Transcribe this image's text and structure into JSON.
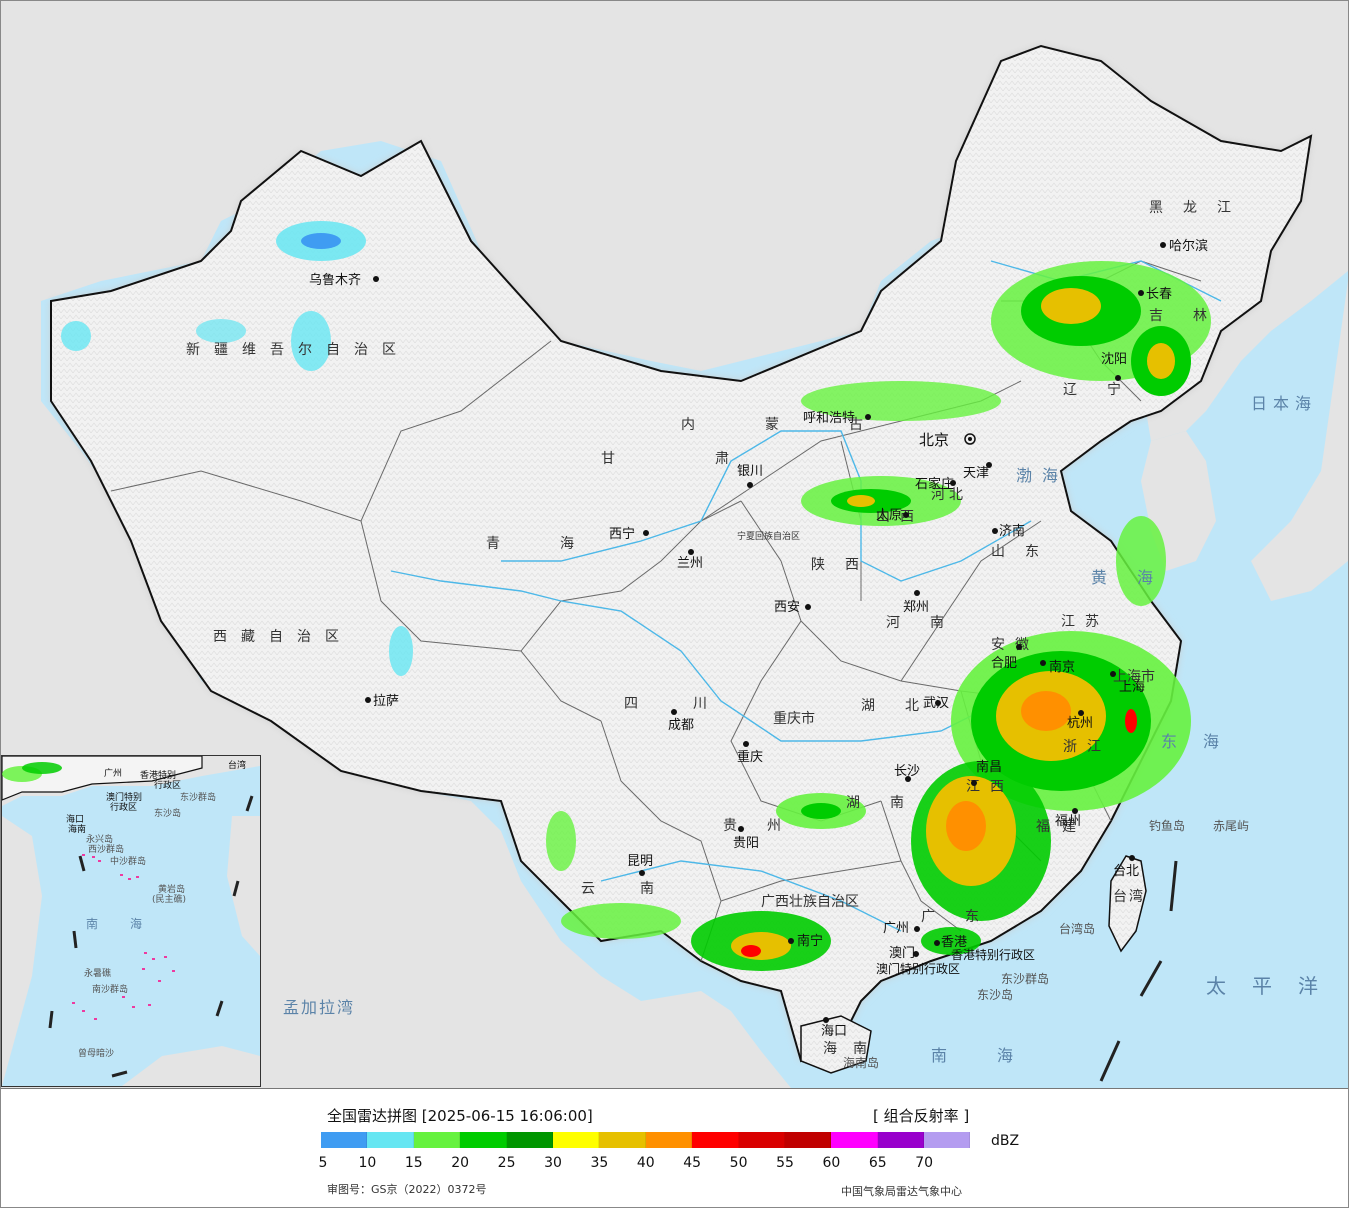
{
  "legend": {
    "title": "全国雷达拼图 [2025-06-15 16:06:00]",
    "product": "[ 组合反射率 ]",
    "unit": "dBZ",
    "review_number": "审图号：GS京（2022）0372号",
    "source": "中国气象局雷达气象中心",
    "ticks": [
      "5",
      "10",
      "15",
      "20",
      "25",
      "30",
      "35",
      "40",
      "45",
      "50",
      "55",
      "60",
      "65",
      "70"
    ],
    "colors": [
      "#3f9cf2",
      "#66e6f2",
      "#66f23f",
      "#00cc00",
      "#009600",
      "#ffff00",
      "#e6c000",
      "#ff9000",
      "#ff0000",
      "#d90000",
      "#c00000",
      "#ff00ff",
      "#9900cc",
      "#b49cf0"
    ]
  },
  "map": {
    "colors": {
      "sea": "#bfe6f8",
      "land_china": "#f4f4f4",
      "land_foreign": "#e4e4e4",
      "border": "#111111",
      "river": "#4db8e8"
    },
    "provinces": [
      {
        "name": "新疆维吾尔自治区"
      },
      {
        "name": "西藏自治区"
      },
      {
        "name": "青海"
      },
      {
        "name": "甘肃"
      },
      {
        "name": "内蒙古"
      },
      {
        "name": "黑龙江"
      },
      {
        "name": "吉林"
      },
      {
        "name": "辽宁"
      },
      {
        "name": "河北"
      },
      {
        "name": "山西"
      },
      {
        "name": "山东"
      },
      {
        "name": "河南"
      },
      {
        "name": "陕西"
      },
      {
        "name": "四川"
      },
      {
        "name": "重庆市"
      },
      {
        "name": "湖北"
      },
      {
        "name": "湖南"
      },
      {
        "name": "贵州"
      },
      {
        "name": "云南"
      },
      {
        "name": "广西壮族自治区"
      },
      {
        "name": "广东"
      },
      {
        "name": "江西"
      },
      {
        "name": "福建"
      },
      {
        "name": "浙江"
      },
      {
        "name": "江苏"
      },
      {
        "name": "安徽"
      },
      {
        "name": "上海市"
      },
      {
        "name": "台湾"
      },
      {
        "name": "海南"
      },
      {
        "name": "宁夏回族自治区"
      }
    ],
    "cities": [
      {
        "name": "乌鲁木齐"
      },
      {
        "name": "拉萨"
      },
      {
        "name": "西宁"
      },
      {
        "name": "兰州"
      },
      {
        "name": "银川"
      },
      {
        "name": "呼和浩特"
      },
      {
        "name": "北京"
      },
      {
        "name": "天津"
      },
      {
        "name": "石家庄"
      },
      {
        "name": "太原"
      },
      {
        "name": "济南"
      },
      {
        "name": "郑州"
      },
      {
        "name": "西安"
      },
      {
        "name": "成都"
      },
      {
        "name": "重庆"
      },
      {
        "name": "武汉"
      },
      {
        "name": "长沙"
      },
      {
        "name": "贵阳"
      },
      {
        "name": "昆明"
      },
      {
        "name": "南宁"
      },
      {
        "name": "广州"
      },
      {
        "name": "南昌"
      },
      {
        "name": "福州"
      },
      {
        "name": "杭州"
      },
      {
        "name": "南京"
      },
      {
        "name": "合肥"
      },
      {
        "name": "上海"
      },
      {
        "name": "台北"
      },
      {
        "name": "海口"
      },
      {
        "name": "哈尔滨"
      },
      {
        "name": "长春"
      },
      {
        "name": "沈阳"
      },
      {
        "name": "澳门"
      },
      {
        "name": "香港"
      }
    ],
    "seas": [
      {
        "name": "日本海"
      },
      {
        "name": "渤海"
      },
      {
        "name": "黄海"
      },
      {
        "name": "东海"
      },
      {
        "name": "太平洋"
      },
      {
        "name": "南海"
      },
      {
        "name": "孟加拉湾"
      }
    ],
    "misc": [
      {
        "name": "香港特别行政区"
      },
      {
        "name": "澳门特别行政区"
      },
      {
        "name": "东沙群岛"
      },
      {
        "name": "东沙岛"
      },
      {
        "name": "台湾岛"
      },
      {
        "name": "海南岛"
      },
      {
        "name": "钓鱼岛"
      },
      {
        "name": "赤尾屿"
      }
    ]
  },
  "inset": {
    "labels": [
      {
        "name": "广州"
      },
      {
        "name": "香港特别"
      },
      {
        "name": "行政区"
      },
      {
        "name": "澳门特别"
      },
      {
        "name": "行政区"
      },
      {
        "name": "东沙群岛"
      },
      {
        "name": "东沙岛"
      },
      {
        "name": "海口"
      },
      {
        "name": "海南"
      },
      {
        "name": "西沙群岛"
      },
      {
        "name": "永兴岛"
      },
      {
        "name": "中沙群岛"
      },
      {
        "name": "黄岩岛"
      },
      {
        "name": "(民主礁)"
      },
      {
        "name": "南"
      },
      {
        "name": "海"
      },
      {
        "name": "永暑礁"
      },
      {
        "name": "南沙群岛"
      },
      {
        "name": "曾母暗沙"
      },
      {
        "name": "台湾"
      }
    ]
  }
}
